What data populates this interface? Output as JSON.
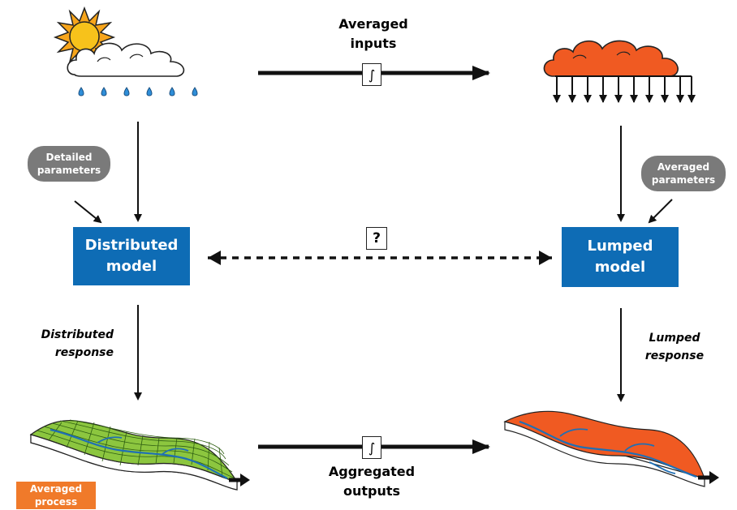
{
  "top": {
    "inputs_label_line1": "Averaged",
    "inputs_label_line2": "inputs",
    "integral_symbol": "∫"
  },
  "left": {
    "params_line1": "Detailed",
    "params_line2": "parameters",
    "model_line1": "Distributed",
    "model_line2": "model",
    "response_line1": "Distributed",
    "response_line2": "response",
    "process_line1": "Averaged",
    "process_line2": "process"
  },
  "right": {
    "params_line1": "Averaged",
    "params_line2": "parameters",
    "model_line1": "Lumped",
    "model_line2": "model",
    "response_line1": "Lumped",
    "response_line2": "response"
  },
  "middle": {
    "question_symbol": "?"
  },
  "bottom": {
    "integral_symbol": "∫",
    "outputs_line1": "Aggregated",
    "outputs_line2": "outputs"
  },
  "colors": {
    "model_blue": "#0e6cb5",
    "pill_gray": "#7a7a7a",
    "orange": "#f07a2a",
    "grid_green": "#8cc63f",
    "river_blue": "#1f6fb5",
    "sun_yellow": "#f7c21b"
  }
}
